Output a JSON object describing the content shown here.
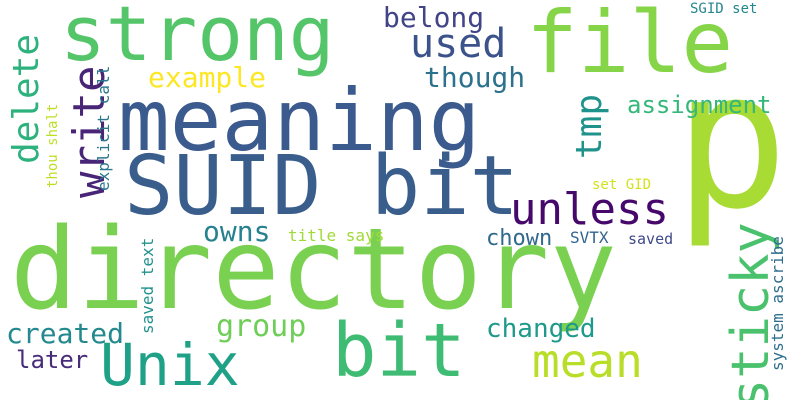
{
  "words": [
    {
      "text": "directory",
      "color": "#7ad151"
    },
    {
      "text": "meaning",
      "color": "#3b5a8d"
    },
    {
      "text": "p",
      "color": "#a8db34"
    },
    {
      "text": "SUID bit",
      "color": "#3a5e8c"
    },
    {
      "text": "file",
      "color": "#86d549"
    },
    {
      "text": "strong",
      "color": "#54c568"
    },
    {
      "text": "bit",
      "color": "#3fbc73"
    },
    {
      "text": "Unix",
      "color": "#1fa188"
    },
    {
      "text": "mean",
      "color": "#b8de29"
    },
    {
      "text": "unless",
      "color": "#46086b"
    },
    {
      "text": "sticky",
      "color": "#4ac16d"
    },
    {
      "text": "write",
      "color": "#482576"
    },
    {
      "text": "delete",
      "color": "#2db27d"
    },
    {
      "text": "tmp",
      "color": "#20928c"
    },
    {
      "text": "used",
      "color": "#3b528b"
    },
    {
      "text": "group",
      "color": "#6ece58"
    },
    {
      "text": "created",
      "color": "#23898e"
    },
    {
      "text": "owns",
      "color": "#26828e"
    },
    {
      "text": "example",
      "color": "#fde725"
    },
    {
      "text": "though",
      "color": "#2c728e"
    },
    {
      "text": "belong",
      "color": "#414487"
    },
    {
      "text": "changed",
      "color": "#1f9a8a"
    },
    {
      "text": "assignment",
      "color": "#35b779"
    },
    {
      "text": "chown",
      "color": "#31688e"
    },
    {
      "text": "later",
      "color": "#472c7a"
    },
    {
      "text": "SVTX",
      "color": "#33638d"
    },
    {
      "text": "saved",
      "color": "#3e4a89"
    },
    {
      "text": "explicit call",
      "color": "#2a788e"
    },
    {
      "text": "saved text",
      "color": "#21918c"
    },
    {
      "text": "thou shalt",
      "color": "#bddf26"
    },
    {
      "text": "title says",
      "color": "#a0da39"
    },
    {
      "text": "set GID",
      "color": "#d2e21b"
    },
    {
      "text": "SGID set",
      "color": "#24868e"
    },
    {
      "text": "system ascribe",
      "color": "#2e6e8e"
    }
  ]
}
